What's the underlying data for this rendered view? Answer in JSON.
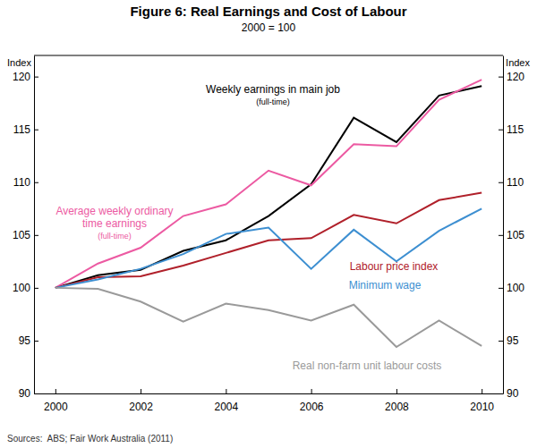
{
  "chart_data": {
    "type": "line",
    "title": "Figure 6: Real Earnings and Cost of Labour",
    "subtitle": "2000 = 100",
    "y_label": "Index",
    "y2_label": "Index",
    "source": "Sources:  ABS; Fair Work Australia (2011)",
    "x": [
      2000,
      2001,
      2002,
      2003,
      2004,
      2005,
      2006,
      2007,
      2008,
      2009,
      2010
    ],
    "xlim": [
      1999.5,
      2010.5
    ],
    "xticks": [
      2000,
      2002,
      2004,
      2006,
      2008,
      2010
    ],
    "ylim": [
      90,
      122
    ],
    "yticks": [
      90,
      95,
      100,
      105,
      110,
      115,
      120
    ],
    "y2lim": [
      90,
      122
    ],
    "y2ticks": [
      90,
      95,
      100,
      105,
      110,
      115,
      120
    ],
    "grid": false,
    "series": [
      {
        "name": "Weekly earnings in main job (full-time)",
        "color": "#000000",
        "values": [
          100,
          101.2,
          101.7,
          103.5,
          104.5,
          106.8,
          109.8,
          116.1,
          113.8,
          118.2,
          119.1
        ]
      },
      {
        "name": "Average weekly ordinary time earnings (full-time)",
        "color": "#ec5aa2",
        "values": [
          100,
          102.3,
          103.8,
          106.8,
          107.9,
          111.1,
          109.7,
          113.6,
          113.4,
          117.8,
          119.7
        ]
      },
      {
        "name": "Labour price index",
        "color": "#b0202a",
        "values": [
          100,
          101.0,
          101.1,
          102.1,
          103.3,
          104.5,
          104.7,
          106.9,
          106.1,
          108.3,
          109.0
        ]
      },
      {
        "name": "Minimum wage",
        "color": "#3d8fd1",
        "values": [
          100,
          100.8,
          101.8,
          103.2,
          105.1,
          105.7,
          101.8,
          105.5,
          102.5,
          105.4,
          107.5
        ]
      },
      {
        "name": "Real non-farm unit labour costs",
        "color": "#9a9a9a",
        "values": [
          100,
          99.9,
          98.7,
          96.8,
          98.5,
          97.9,
          96.9,
          98.4,
          94.4,
          96.9,
          94.5
        ]
      }
    ]
  }
}
